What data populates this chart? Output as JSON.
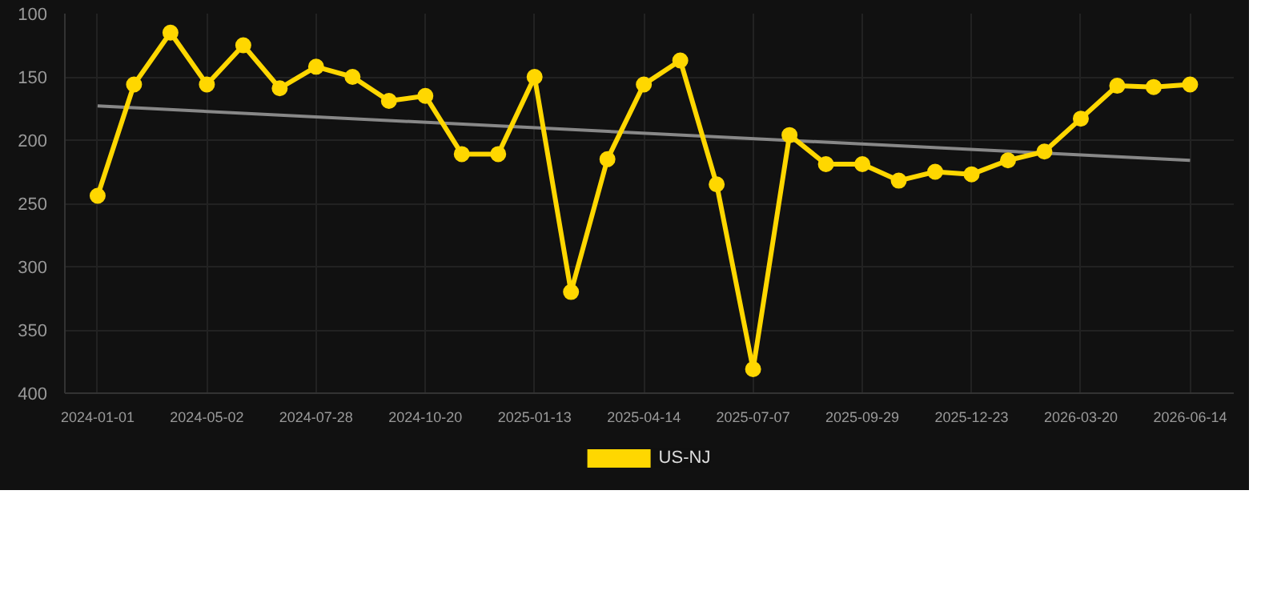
{
  "chart_data": {
    "type": "line",
    "categories": [
      "2024-01-01",
      null,
      null,
      "2024-05-02",
      null,
      null,
      "2024-07-28",
      null,
      null,
      "2024-10-20",
      null,
      null,
      "2025-01-13",
      null,
      null,
      "2025-04-14",
      null,
      null,
      "2025-07-07",
      null,
      null,
      "2025-09-29",
      null,
      null,
      "2025-12-23",
      null,
      null,
      "2026-03-20",
      null,
      null,
      "2026-06-14"
    ],
    "series": [
      {
        "name": "US-NJ",
        "color": "#ffd700",
        "marker": "circle",
        "values": [
          244,
          156,
          115,
          156,
          125,
          159,
          142,
          150,
          169,
          165,
          211,
          211,
          150,
          320,
          215,
          156,
          137,
          235,
          381,
          196,
          219,
          219,
          232,
          225,
          227,
          216,
          209,
          183,
          157,
          158,
          156
        ]
      },
      {
        "type": "line",
        "color": "#888888",
        "marker": "none",
        "values": [
          173,
          null,
          null,
          null,
          null,
          null,
          null,
          null,
          null,
          null,
          null,
          null,
          null,
          null,
          null,
          null,
          null,
          null,
          null,
          null,
          null,
          null,
          null,
          null,
          null,
          null,
          null,
          null,
          null,
          null,
          216
        ]
      }
    ],
    "ylim": [
      400,
      100
    ],
    "yticks": [
      100,
      150,
      200,
      250,
      300,
      350,
      400
    ],
    "grid": true,
    "legend": "bottom"
  }
}
